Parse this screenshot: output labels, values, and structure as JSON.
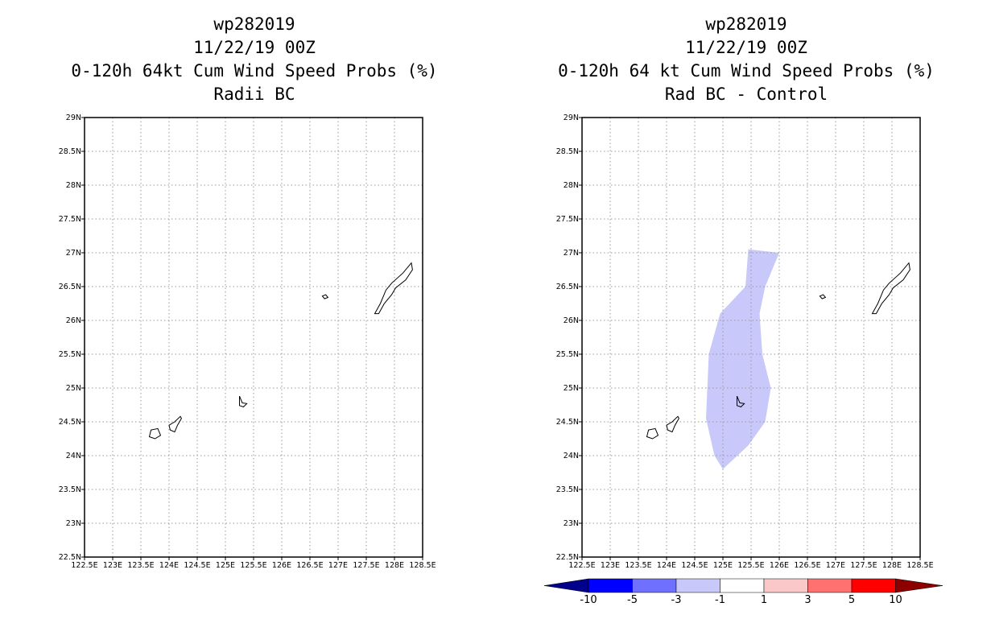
{
  "chart_data": [
    {
      "type": "map",
      "title": [
        "wp282019",
        "11/22/19 00Z",
        "0-120h 64kt Cum Wind Speed Probs (%)",
        "Radii BC"
      ],
      "xlim": [
        122.5,
        128.5
      ],
      "ylim": [
        22.5,
        29
      ],
      "x_ticks": [
        "122.5E",
        "123E",
        "123.5E",
        "124E",
        "124.5E",
        "125E",
        "125.5E",
        "126E",
        "126.5E",
        "127E",
        "127.5E",
        "128E",
        "128.5E"
      ],
      "y_ticks": [
        "29N",
        "28.5N",
        "28N",
        "27.5N",
        "27N",
        "26.5N",
        "26N",
        "25.5N",
        "25N",
        "24.5N",
        "24N",
        "23.5N",
        "23N",
        "22.5N"
      ],
      "grid": true,
      "filled_regions": []
    },
    {
      "type": "map",
      "title": [
        "wp282019",
        "11/22/19 00Z",
        "0-120h 64 kt Cum Wind Speed Probs (%)",
        "Rad BC - Control"
      ],
      "xlim": [
        122.5,
        128.5
      ],
      "ylim": [
        22.5,
        29
      ],
      "x_ticks": [
        "122.5E",
        "123E",
        "123.5E",
        "124E",
        "124.5E",
        "125E",
        "125.5E",
        "126E",
        "126.5E",
        "127E",
        "127.5E",
        "128E",
        "128.5E"
      ],
      "y_ticks": [
        "29N",
        "28.5N",
        "28N",
        "27.5N",
        "27N",
        "26.5N",
        "26N",
        "25.5N",
        "25N",
        "24.5N",
        "24N",
        "23.5N",
        "23N",
        "22.5N"
      ],
      "grid": true,
      "filled_regions": [
        {
          "level": "-3 to -1",
          "color": "#c8c8fa",
          "lonlat": [
            [
              125.45,
              27.05
            ],
            [
              126.0,
              27.0
            ],
            [
              125.75,
              26.5
            ],
            [
              125.65,
              26.1
            ],
            [
              125.7,
              25.5
            ],
            [
              125.85,
              25.0
            ],
            [
              125.75,
              24.5
            ],
            [
              125.45,
              24.15
            ],
            [
              125.0,
              23.8
            ],
            [
              124.85,
              24.0
            ],
            [
              124.7,
              24.55
            ],
            [
              124.75,
              25.5
            ],
            [
              124.95,
              26.1
            ],
            [
              125.4,
              26.5
            ]
          ]
        }
      ],
      "colorbar": {
        "labels": [
          "-10",
          "-5",
          "-3",
          "-1",
          "1",
          "3",
          "5",
          "10"
        ],
        "colors": [
          "#00008c",
          "#0000ff",
          "#7070ff",
          "#c8c8fa",
          "#ffffff",
          "#fac8c8",
          "#ff7070",
          "#ff0000",
          "#8c0000"
        ]
      }
    }
  ],
  "coastlines": [
    [
      [
        127.65,
        26.1
      ],
      [
        127.75,
        26.25
      ],
      [
        127.85,
        26.45
      ],
      [
        127.95,
        26.55
      ],
      [
        128.15,
        26.7
      ],
      [
        128.3,
        26.85
      ],
      [
        128.32,
        26.75
      ],
      [
        128.2,
        26.6
      ],
      [
        128.02,
        26.48
      ],
      [
        127.95,
        26.38
      ],
      [
        127.82,
        26.25
      ],
      [
        127.72,
        26.1
      ]
    ],
    [
      [
        126.72,
        26.36
      ],
      [
        126.78,
        26.38
      ],
      [
        126.82,
        26.34
      ],
      [
        126.76,
        26.32
      ]
    ],
    [
      [
        125.25,
        24.88
      ],
      [
        125.3,
        24.78
      ],
      [
        125.38,
        24.77
      ],
      [
        125.32,
        24.72
      ],
      [
        125.25,
        24.74
      ]
    ],
    [
      [
        124.0,
        24.45
      ],
      [
        124.1,
        24.5
      ],
      [
        124.2,
        24.58
      ],
      [
        124.22,
        24.55
      ],
      [
        124.15,
        24.45
      ],
      [
        124.1,
        24.35
      ],
      [
        124.02,
        24.38
      ]
    ],
    [
      [
        123.68,
        24.38
      ],
      [
        123.8,
        24.4
      ],
      [
        123.85,
        24.3
      ],
      [
        123.75,
        24.25
      ],
      [
        123.65,
        24.28
      ]
    ]
  ]
}
